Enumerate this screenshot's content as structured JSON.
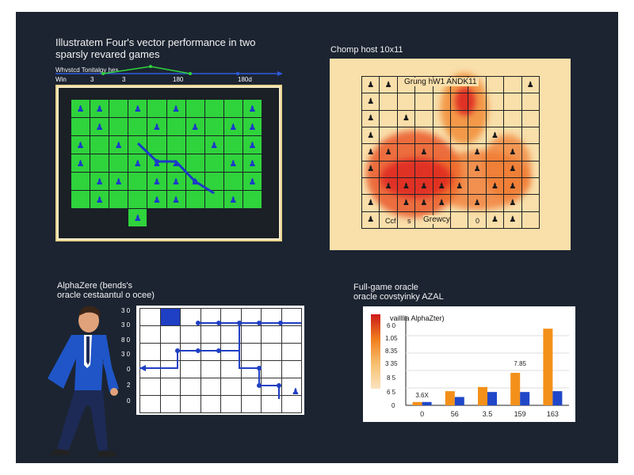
{
  "panel_top_left": {
    "title_line1": "Illustratem Four's vector performance in two",
    "title_line2": "sparsly revared games",
    "legend_text": "Whvstcd Tonitalgy hes",
    "row_label": "Win",
    "ticks": [
      "3",
      "3",
      "180",
      "180d"
    ],
    "piece_glyph": "♟"
  },
  "panel_top_right": {
    "title": "Chomp host 10x11",
    "grid_label": "Grung hW1 ANDK11",
    "bottom_labels": [
      "Ccf",
      "s",
      "Grewcy",
      "0"
    ],
    "piece_glyph": "♟"
  },
  "panel_bottom_left": {
    "title_line1": "AlphaZere (bends's",
    "title_line2": "oracle cestaantul o ocee)",
    "y_ticks": [
      "3 0",
      "3 0",
      "8 0",
      "3 0",
      "0",
      "2",
      "0"
    ]
  },
  "panel_bottom_right": {
    "title_line1": "Full-game oracle",
    "title_line2": "oracle covstyinky AZAL",
    "chart_data": {
      "type": "bar",
      "title": "vailllia AlphaZter)",
      "categories": [
        "0",
        "56",
        "3.5",
        "159",
        "163"
      ],
      "series": [
        {
          "values": [
            4,
            17,
            22,
            39,
            92
          ]
        },
        {
          "values": [
            4,
            10,
            16,
            16,
            17
          ]
        }
      ],
      "y_ticks": [
        "6 0",
        "1.05",
        "8.35",
        "3 35",
        "8 5",
        "6 5",
        "0"
      ],
      "annotations": [
        "3.6X",
        "7.85"
      ],
      "colors": {
        "series_a": "#f39019",
        "series_b": "#2047c8",
        "colorbar_top": "#cc1a1a",
        "colorbar_bottom": "#fbe3c0"
      }
    }
  }
}
